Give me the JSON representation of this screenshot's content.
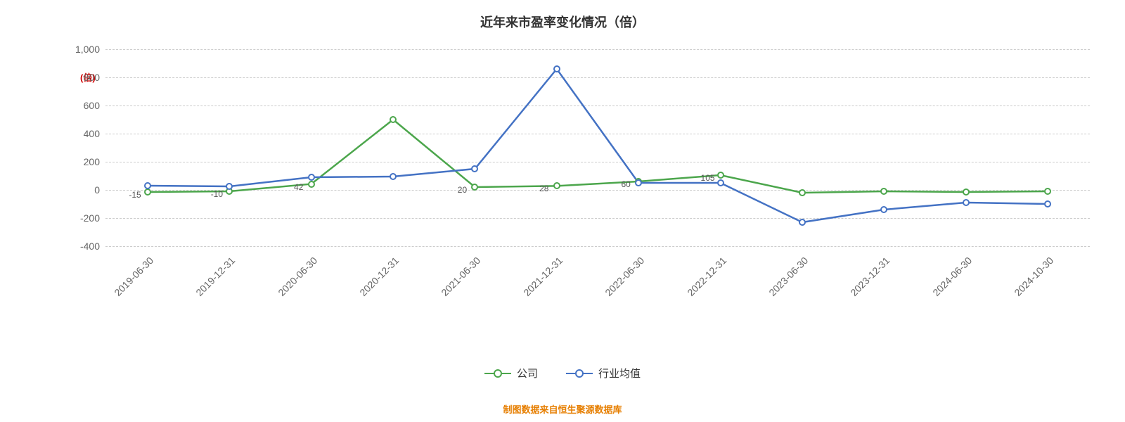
{
  "chart": {
    "type": "line",
    "title": "近年来市盈率变化情况（倍）",
    "title_fontsize": 18,
    "title_color": "#333333",
    "background_color": "#ffffff",
    "grid_color": "#cccccc",
    "grid_style": "dashed",
    "y_axis_label": "(倍)",
    "y_axis_label_color": "#d00000",
    "ylim": [
      -400,
      1000
    ],
    "yticks": [
      -400,
      -200,
      0,
      200,
      400,
      600,
      800,
      1000
    ],
    "ytick_labels": [
      "-400",
      "-200",
      "0",
      "200",
      "400",
      "600",
      "800",
      "1,000"
    ],
    "x_categories": [
      "2019-06-30",
      "2019-12-31",
      "2020-06-30",
      "2020-12-31",
      "2021-06-30",
      "2021-12-31",
      "2022-06-30",
      "2022-12-31",
      "2023-06-30",
      "2023-12-31",
      "2024-06-30",
      "2024-10-30"
    ],
    "x_label_rotation": -45,
    "x_label_color": "#666666",
    "x_label_fontsize": 14,
    "y_label_color": "#666666",
    "y_label_fontsize": 14,
    "line_width": 2.5,
    "marker_style": "circle",
    "marker_size": 10,
    "marker_fill": "#ffffff",
    "series": [
      {
        "name": "公司",
        "color": "#4ca64c",
        "values": [
          -15,
          -10,
          42,
          500,
          20,
          28,
          60,
          105,
          -20,
          -10,
          -15,
          -10
        ],
        "point_labels": [
          "-15",
          "-10",
          "42",
          "",
          "20",
          "28",
          "60",
          "105",
          "",
          "",
          "",
          ""
        ]
      },
      {
        "name": "行业均值",
        "color": "#4472c4",
        "values": [
          30,
          25,
          90,
          95,
          150,
          860,
          50,
          50,
          -230,
          -140,
          -90,
          -100
        ],
        "point_labels": [
          "",
          "",
          "",
          "",
          "",
          "",
          "",
          "",
          "",
          "",
          "",
          ""
        ]
      }
    ],
    "legend": {
      "items": [
        "公司",
        "行业均值"
      ],
      "position": "bottom"
    },
    "attribution": "制图数据来自恒生聚源数据库",
    "attribution_color": "#e67e00"
  }
}
